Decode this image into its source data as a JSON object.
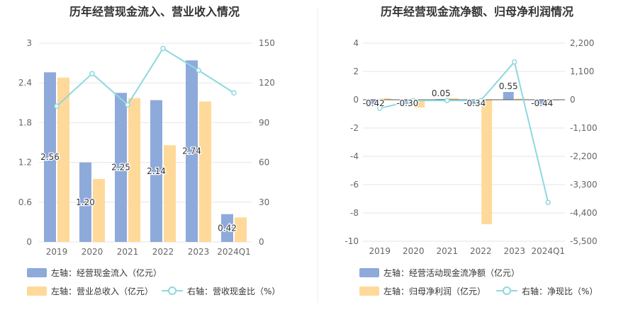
{
  "colors": {
    "blue_bar": "#8eaadb",
    "orange_bar": "#ffd999",
    "line": "#8ed8de",
    "grid": "#e6e6e6",
    "axis_text": "#666666",
    "title": "#333333",
    "label_text": "#333333"
  },
  "chart_data": [
    {
      "type": "bar",
      "title": "历年经营现金流入、营业收入情况",
      "categories": [
        "2019",
        "2020",
        "2021",
        "2022",
        "2023",
        "2024Q1"
      ],
      "left_axis": {
        "min": 0,
        "max": 3,
        "ticks": [
          "0",
          "0.6",
          "1.2",
          "1.8",
          "2.4",
          "3"
        ]
      },
      "right_axis": {
        "min": 0,
        "max": 150,
        "ticks": [
          "0",
          "30",
          "60",
          "90",
          "120",
          "150"
        ]
      },
      "series": [
        {
          "name": "左轴：经营现金流入（亿元）",
          "kind": "bar",
          "axis": "left",
          "values": [
            2.56,
            1.2,
            2.25,
            2.14,
            2.74,
            0.42
          ],
          "labels": [
            "2.56",
            "1.20",
            "2.25",
            "2.14",
            "2.74",
            "0.42"
          ]
        },
        {
          "name": "左轴：营业总收入（亿元）",
          "kind": "bar",
          "axis": "left",
          "values": [
            2.48,
            0.95,
            2.17,
            1.46,
            2.12,
            0.37
          ]
        },
        {
          "name": "右轴：营收现金比（%）",
          "kind": "line",
          "axis": "right",
          "values": [
            102.5,
            127,
            103.5,
            146,
            129.5,
            112.5
          ]
        }
      ],
      "grid": true,
      "legend_position": "bottom"
    },
    {
      "type": "bar",
      "title": "历年经营现金流净额、归母净利润情况",
      "categories": [
        "2019",
        "2020",
        "2021",
        "2022",
        "2023",
        "2024Q1"
      ],
      "left_axis": {
        "min": -10,
        "max": 4,
        "ticks": [
          "-10",
          "-8",
          "-6",
          "-4",
          "-2",
          "0",
          "2",
          "4"
        ]
      },
      "right_axis": {
        "min": -5500,
        "max": 2200,
        "ticks": [
          "-5,500",
          "-4,400",
          "-3,300",
          "-2,200",
          "-1,100",
          "0",
          "1,100",
          "2,200"
        ]
      },
      "series": [
        {
          "name": "左轴：经营活动现金流净额（亿元）",
          "kind": "bar",
          "axis": "left",
          "values": [
            -0.42,
            -0.3,
            0.05,
            -0.34,
            0.55,
            -0.44
          ],
          "labels": [
            "-0.42",
            "-0.30",
            "0.05",
            "-0.34",
            "0.55",
            "-0.44"
          ]
        },
        {
          "name": "左轴：归母净利润（亿元）",
          "kind": "bar",
          "axis": "left",
          "values": [
            0.1,
            -0.55,
            0.1,
            -8.8,
            0.08,
            -0.05
          ]
        },
        {
          "name": "右轴：净现比（%）",
          "kind": "line",
          "axis": "right",
          "values": [
            -330,
            -30,
            -30,
            -30,
            1470,
            -3990
          ]
        }
      ],
      "grid": true,
      "legend_position": "bottom"
    }
  ]
}
